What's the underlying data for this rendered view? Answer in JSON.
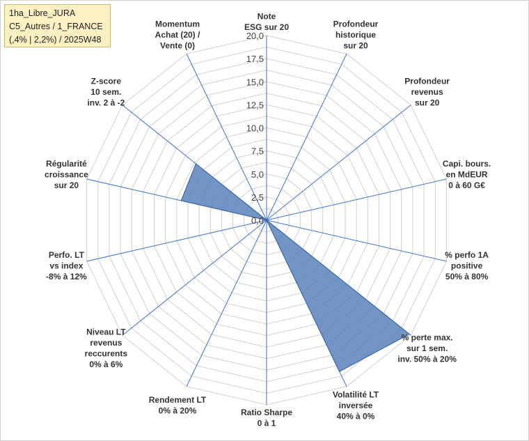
{
  "info_box": {
    "line1": "1ha_Libre_JURA",
    "line2": "C5_Autres / 1_FRANCE",
    "line3": "(,4% | 2,2%) / 2025W48"
  },
  "colors": {
    "fill": "#5b83bb",
    "stroke": "#3f6aa3",
    "grid": "#d0d0d0",
    "spoke": "#4472c4"
  },
  "chart_data": {
    "type": "radar",
    "r_range": [
      0,
      20
    ],
    "tick_values": [
      0,
      2.5,
      5,
      7.5,
      10,
      12.5,
      15,
      17.5,
      20
    ],
    "tick_labels": [
      "0,0",
      "2,5",
      "5,0",
      "7,5",
      "10,0",
      "12,5",
      "15,0",
      "17,5",
      "20,0"
    ],
    "grid": true,
    "categories": [
      [
        "Note",
        "ESG sur 20"
      ],
      [
        "Profondeur",
        "historique",
        "sur 20"
      ],
      [
        "Profondeur",
        "revenus",
        "sur 20"
      ],
      [
        "Capi. bours.",
        "en MdEUR",
        "0 à 60 G€"
      ],
      [
        "% perfo 1A",
        "positive",
        "50% à 80%"
      ],
      [
        "% perte max.",
        "sur 1 sem.",
        "inv. 50% à 20%"
      ],
      [
        "Volatilité LT",
        "inversée",
        "40% à 0%"
      ],
      [
        "Ratio Sharpe",
        "0 à 1"
      ],
      [
        "Rendement LT",
        "0% à 20%"
      ],
      [
        "Niveau LT",
        "revenus",
        "reccurents",
        "0% à 6%"
      ],
      [
        "Perfo. LT",
        "vs index",
        "-8% à 12%"
      ],
      [
        "Régularité",
        "croissance",
        "sur 20"
      ],
      [
        "Z-score",
        "10 sem.",
        "inv. 2 à -2"
      ],
      [
        "Momentum",
        "Achat (20) /",
        "Vente (0)"
      ]
    ],
    "values": [
      0,
      0,
      0,
      0,
      0,
      19.8,
      18.2,
      0,
      0,
      0,
      0,
      9.5,
      9.8,
      0
    ]
  }
}
